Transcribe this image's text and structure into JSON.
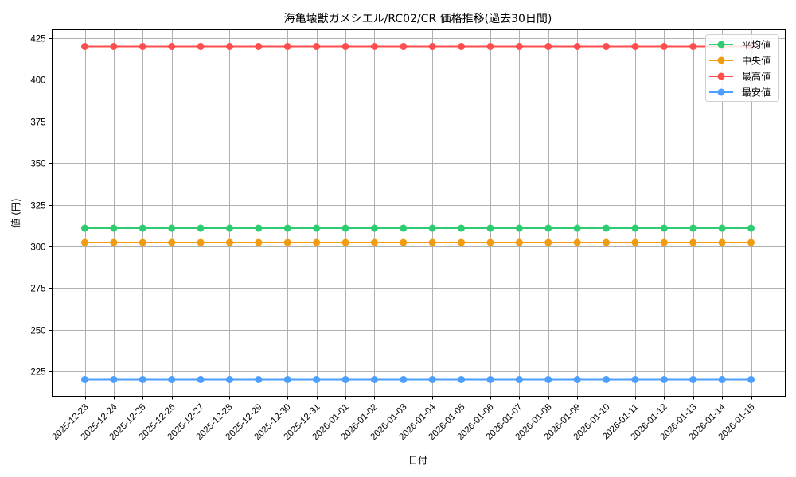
{
  "chart_data": {
    "type": "line",
    "title": "海亀壊獣ガメシエル/RC02/CR 価格推移(過去30日間)",
    "xlabel": "日付",
    "ylabel": "値 (円)",
    "ylim": [
      210,
      431
    ],
    "yticks": [
      225,
      250,
      275,
      300,
      325,
      350,
      375,
      400,
      425
    ],
    "grid": true,
    "legend_position": "upper right",
    "x": [
      "2025-12-23",
      "2025-12-24",
      "2025-12-25",
      "2025-12-26",
      "2025-12-27",
      "2025-12-28",
      "2025-12-29",
      "2025-12-30",
      "2025-12-31",
      "2026-01-01",
      "2026-01-02",
      "2026-01-03",
      "2026-01-04",
      "2026-01-05",
      "2026-01-06",
      "2026-01-07",
      "2026-01-08",
      "2026-01-09",
      "2026-01-10",
      "2026-01-11",
      "2026-01-12",
      "2026-01-13",
      "2026-01-14",
      "2026-01-15"
    ],
    "series": [
      {
        "name": "平均値",
        "color": "#2ecc71",
        "values": [
          310.9,
          310.9,
          310.9,
          310.9,
          310.9,
          310.9,
          310.9,
          310.9,
          310.9,
          310.9,
          310.9,
          310.9,
          310.9,
          310.9,
          310.9,
          310.9,
          310.9,
          310.9,
          310.9,
          310.9,
          310.9,
          310.9,
          310.9,
          310.9
        ]
      },
      {
        "name": "中央値",
        "color": "#f39c12",
        "values": [
          302.3,
          302.3,
          302.3,
          302.3,
          302.3,
          302.3,
          302.3,
          302.3,
          302.3,
          302.3,
          302.3,
          302.3,
          302.3,
          302.3,
          302.3,
          302.3,
          302.3,
          302.3,
          302.3,
          302.3,
          302.3,
          302.3,
          302.3,
          302.3
        ]
      },
      {
        "name": "最高値",
        "color": "#ff4d4d",
        "values": [
          420,
          420,
          420,
          420,
          420,
          420,
          420,
          420,
          420,
          420,
          420,
          420,
          420,
          420,
          420,
          420,
          420,
          420,
          420,
          420,
          420,
          420,
          420,
          420
        ]
      },
      {
        "name": "最安値",
        "color": "#4d9fff",
        "values": [
          220,
          220,
          220,
          220,
          220,
          220,
          220,
          220,
          220,
          220,
          220,
          220,
          220,
          220,
          220,
          220,
          220,
          220,
          220,
          220,
          220,
          220,
          220,
          220
        ]
      }
    ]
  }
}
